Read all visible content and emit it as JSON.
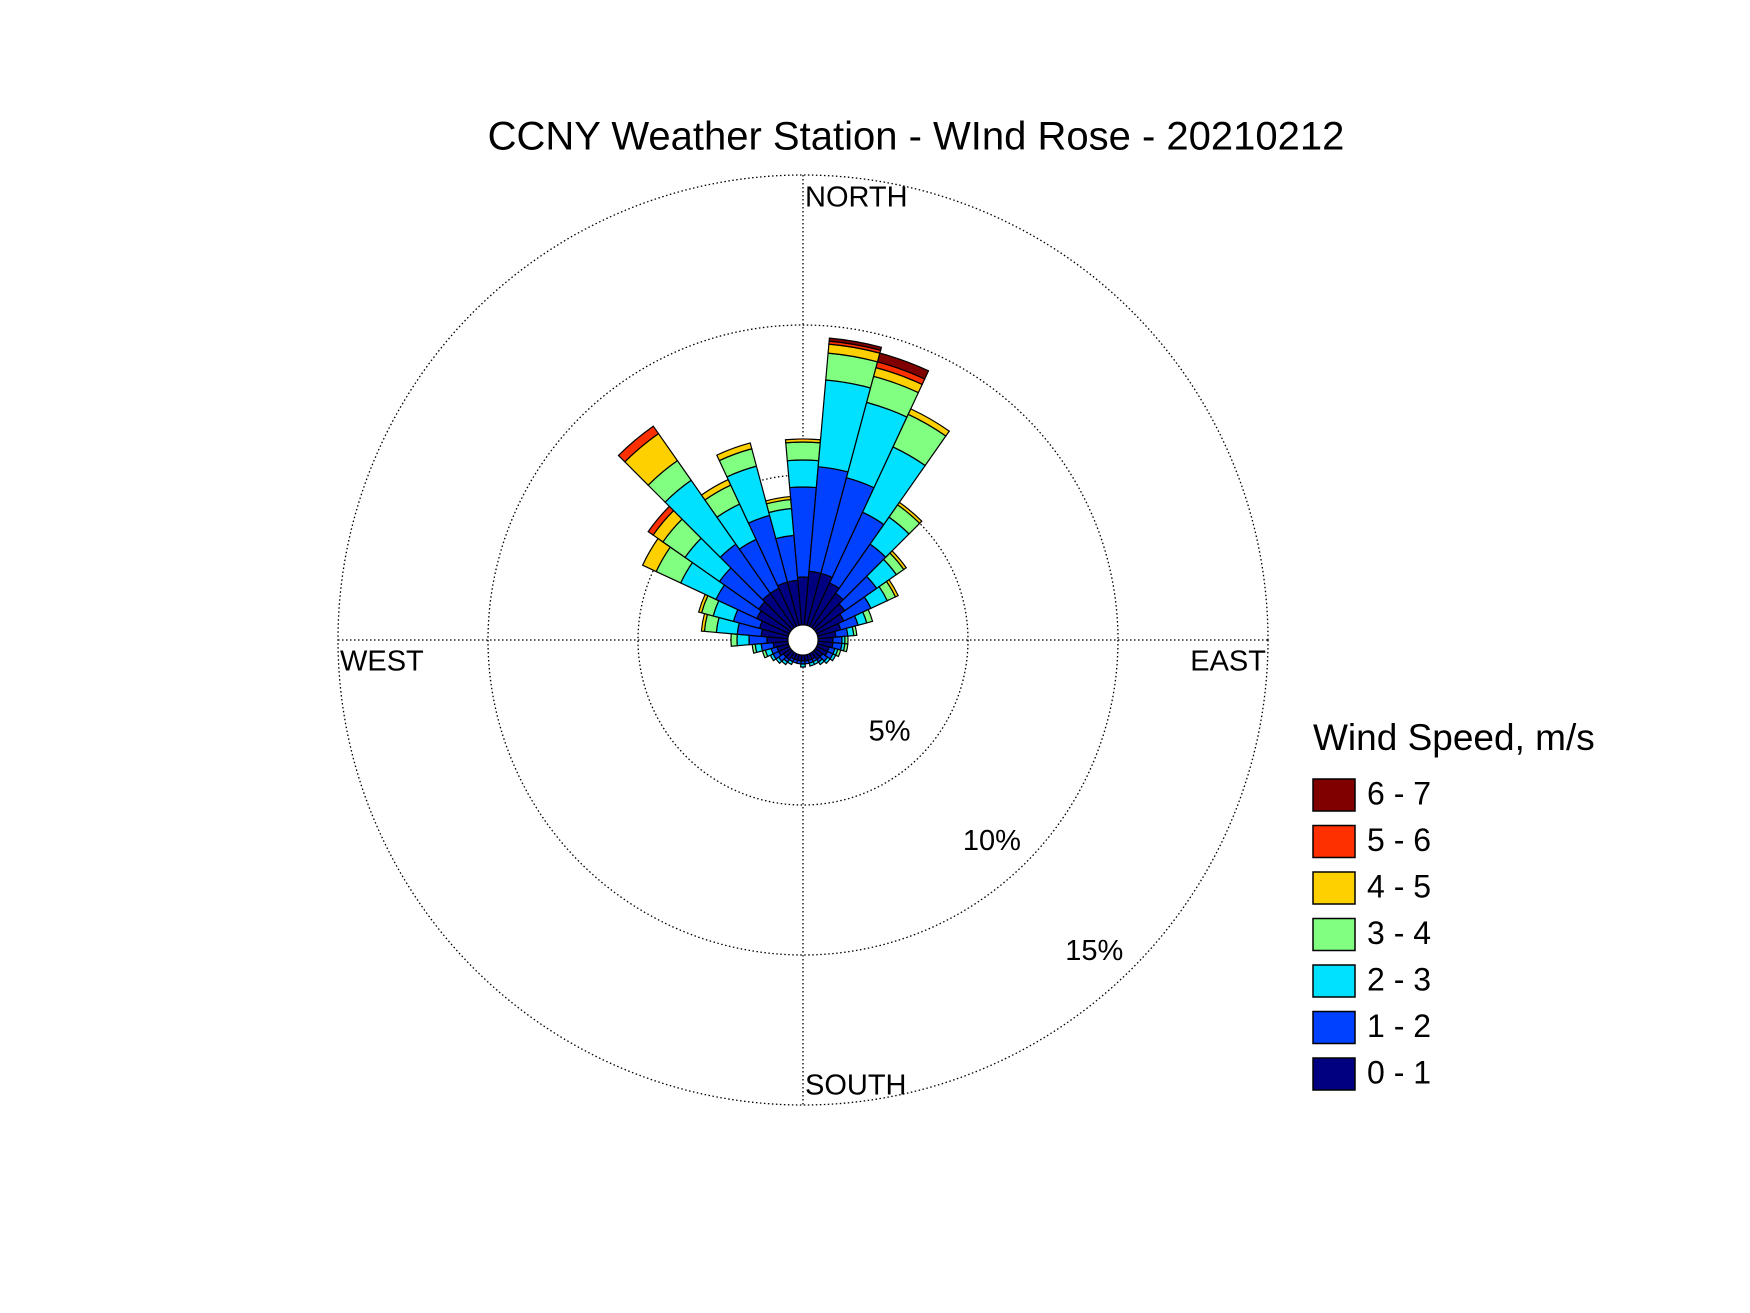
{
  "chart_data": {
    "type": "wind-rose",
    "title": "CCNY Weather Station - WInd Rose - 20210212",
    "direction_labels": {
      "north": "NORTH",
      "east": "EAST",
      "south": "SOUTH",
      "west": "WEST"
    },
    "legend_title": "Wind Speed, m/s",
    "x": [
      0,
      10,
      20,
      30,
      40,
      50,
      60,
      70,
      80,
      90,
      100,
      110,
      120,
      130,
      140,
      150,
      160,
      170,
      180,
      190,
      200,
      210,
      220,
      230,
      240,
      250,
      260,
      270,
      280,
      290,
      300,
      310,
      320,
      330,
      340,
      350
    ],
    "rlim": [
      0,
      15
    ],
    "rticks": [
      {
        "value": 5,
        "label": "5%"
      },
      {
        "value": 10,
        "label": "10%"
      },
      {
        "value": 15,
        "label": "15%"
      }
    ],
    "grid": true,
    "series": [
      {
        "name": "0 - 1",
        "color": "#000080",
        "values": [
          1.6,
          1.8,
          1.8,
          1.6,
          1.4,
          1.2,
          1.0,
          0.8,
          0.6,
          0.5,
          0.5,
          0.4,
          0.4,
          0.3,
          0.3,
          0.2,
          0.2,
          0.2,
          0.2,
          0.2,
          0.2,
          0.2,
          0.3,
          0.3,
          0.4,
          0.4,
          0.5,
          0.7,
          0.9,
          1.0,
          1.2,
          1.3,
          1.4,
          1.4,
          1.5,
          1.5
        ]
      },
      {
        "name": "1 - 2",
        "color": "#0040ff",
        "values": [
          3.0,
          3.5,
          3.3,
          2.6,
          2.0,
          1.3,
          1.0,
          0.6,
          0.4,
          0.3,
          0.3,
          0.2,
          0.2,
          0.2,
          0.1,
          0.1,
          0.1,
          0.1,
          0.1,
          0.1,
          0.1,
          0.1,
          0.1,
          0.2,
          0.2,
          0.2,
          0.4,
          0.6,
          0.8,
          0.9,
          1.5,
          1.6,
          2.0,
          1.8,
          2.3,
          1.5
        ]
      },
      {
        "name": "2 - 3",
        "color": "#00e0ff",
        "values": [
          0.9,
          2.9,
          2.6,
          2.4,
          1.1,
          0.8,
          0.6,
          0.3,
          0.2,
          0.1,
          0.1,
          0.1,
          0.1,
          0.1,
          0.1,
          0.1,
          0.1,
          0,
          0.1,
          0,
          0,
          0.1,
          0.1,
          0.1,
          0.1,
          0.2,
          0.2,
          0.4,
          0.7,
          0.7,
          1.3,
          1.4,
          2.6,
          1.3,
          1.7,
          0.9
        ]
      },
      {
        "name": "3 - 4",
        "color": "#80ff80",
        "values": [
          0.6,
          0.9,
          0.9,
          1.2,
          0.5,
          0.3,
          0.3,
          0.2,
          0.1,
          0.1,
          0.1,
          0.1,
          0,
          0,
          0,
          0,
          0,
          0,
          0,
          0,
          0,
          0,
          0,
          0,
          0,
          0.1,
          0.1,
          0.2,
          0.4,
          0.4,
          0.9,
          0.9,
          0.8,
          0.7,
          0.6,
          0.3
        ]
      },
      {
        "name": "4 - 5",
        "color": "#ffd000",
        "values": [
          0.1,
          0.3,
          0.3,
          0.2,
          0.1,
          0.1,
          0.1,
          0,
          0,
          0,
          0,
          0,
          0,
          0,
          0,
          0,
          0,
          0,
          0,
          0,
          0,
          0,
          0,
          0,
          0,
          0,
          0,
          0,
          0.1,
          0.1,
          0.5,
          0.4,
          1.1,
          0.2,
          0.2,
          0.1
        ]
      },
      {
        "name": "5 - 6",
        "color": "#ff3000",
        "values": [
          0,
          0.1,
          0.2,
          0,
          0,
          0,
          0,
          0,
          0,
          0,
          0,
          0,
          0,
          0,
          0,
          0,
          0,
          0,
          0,
          0,
          0,
          0,
          0,
          0,
          0,
          0,
          0,
          0,
          0,
          0,
          0,
          0.2,
          0.3,
          0,
          0,
          0
        ]
      },
      {
        "name": "6 - 7",
        "color": "#800000",
        "values": [
          0,
          0.1,
          0.3,
          0,
          0,
          0,
          0,
          0,
          0,
          0,
          0,
          0,
          0,
          0,
          0,
          0,
          0,
          0,
          0,
          0,
          0,
          0,
          0,
          0,
          0,
          0,
          0,
          0,
          0,
          0,
          0,
          0,
          0,
          0,
          0,
          0
        ]
      }
    ]
  }
}
